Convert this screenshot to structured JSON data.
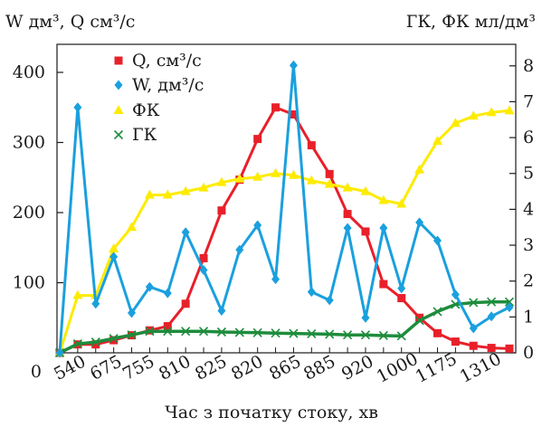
{
  "chart_data": {
    "type": "line",
    "xlabel": "Час з початку  стоку, хв",
    "ylabel_left": "W дм³, Q см³/с",
    "ylabel_right": "ГК, ФК мл/дм³",
    "x_ticks": [
      "540",
      "675",
      "755",
      "810",
      "825",
      "820",
      "865",
      "885",
      "920",
      "1000",
      "1175",
      "1310"
    ],
    "left_axis": {
      "min": 0,
      "max": 440,
      "ticks": [
        0,
        100,
        200,
        300,
        400
      ]
    },
    "right_axis": {
      "min": 0,
      "max": 8.6,
      "ticks": [
        0,
        1,
        2,
        3,
        4,
        5,
        6,
        7,
        8
      ]
    },
    "grid": false,
    "legend_position": "top-center",
    "series": [
      {
        "name": "Q, см³/с",
        "axis": "left",
        "color": "#e8202a",
        "marker": "square",
        "values": [
          0,
          12,
          12,
          18,
          25,
          32,
          38,
          70,
          135,
          203,
          247,
          305,
          350,
          340,
          296,
          255,
          198,
          173,
          98,
          78,
          50,
          28,
          16,
          10,
          7,
          6
        ]
      },
      {
        "name": "W, дм³/с",
        "axis": "left",
        "color": "#1aa0de",
        "marker": "diamond",
        "values": [
          0,
          350,
          70,
          137,
          57,
          94,
          85,
          172,
          118,
          60,
          147,
          182,
          105,
          410,
          87,
          75,
          178,
          50,
          178,
          92,
          186,
          160,
          83,
          35,
          52,
          65
        ]
      },
      {
        "name": "ФК",
        "axis": "right",
        "color": "#fdeb00",
        "marker": "triangle",
        "values": [
          0,
          1.6,
          1.6,
          2.9,
          3.5,
          4.4,
          4.4,
          4.5,
          4.6,
          4.75,
          4.85,
          4.9,
          5.0,
          4.95,
          4.8,
          4.7,
          4.6,
          4.5,
          4.25,
          4.15,
          5.1,
          5.9,
          6.4,
          6.6,
          6.7,
          6.75
        ]
      },
      {
        "name": "ГК",
        "axis": "right",
        "color": "#1e8c3c",
        "marker": "cross",
        "values": [
          0,
          0.25,
          0.3,
          0.4,
          0.5,
          0.6,
          0.6,
          0.6,
          0.6,
          0.58,
          0.57,
          0.56,
          0.55,
          0.54,
          0.53,
          0.52,
          0.5,
          0.5,
          0.48,
          0.47,
          0.9,
          1.15,
          1.35,
          1.4,
          1.42,
          1.42
        ]
      }
    ]
  }
}
